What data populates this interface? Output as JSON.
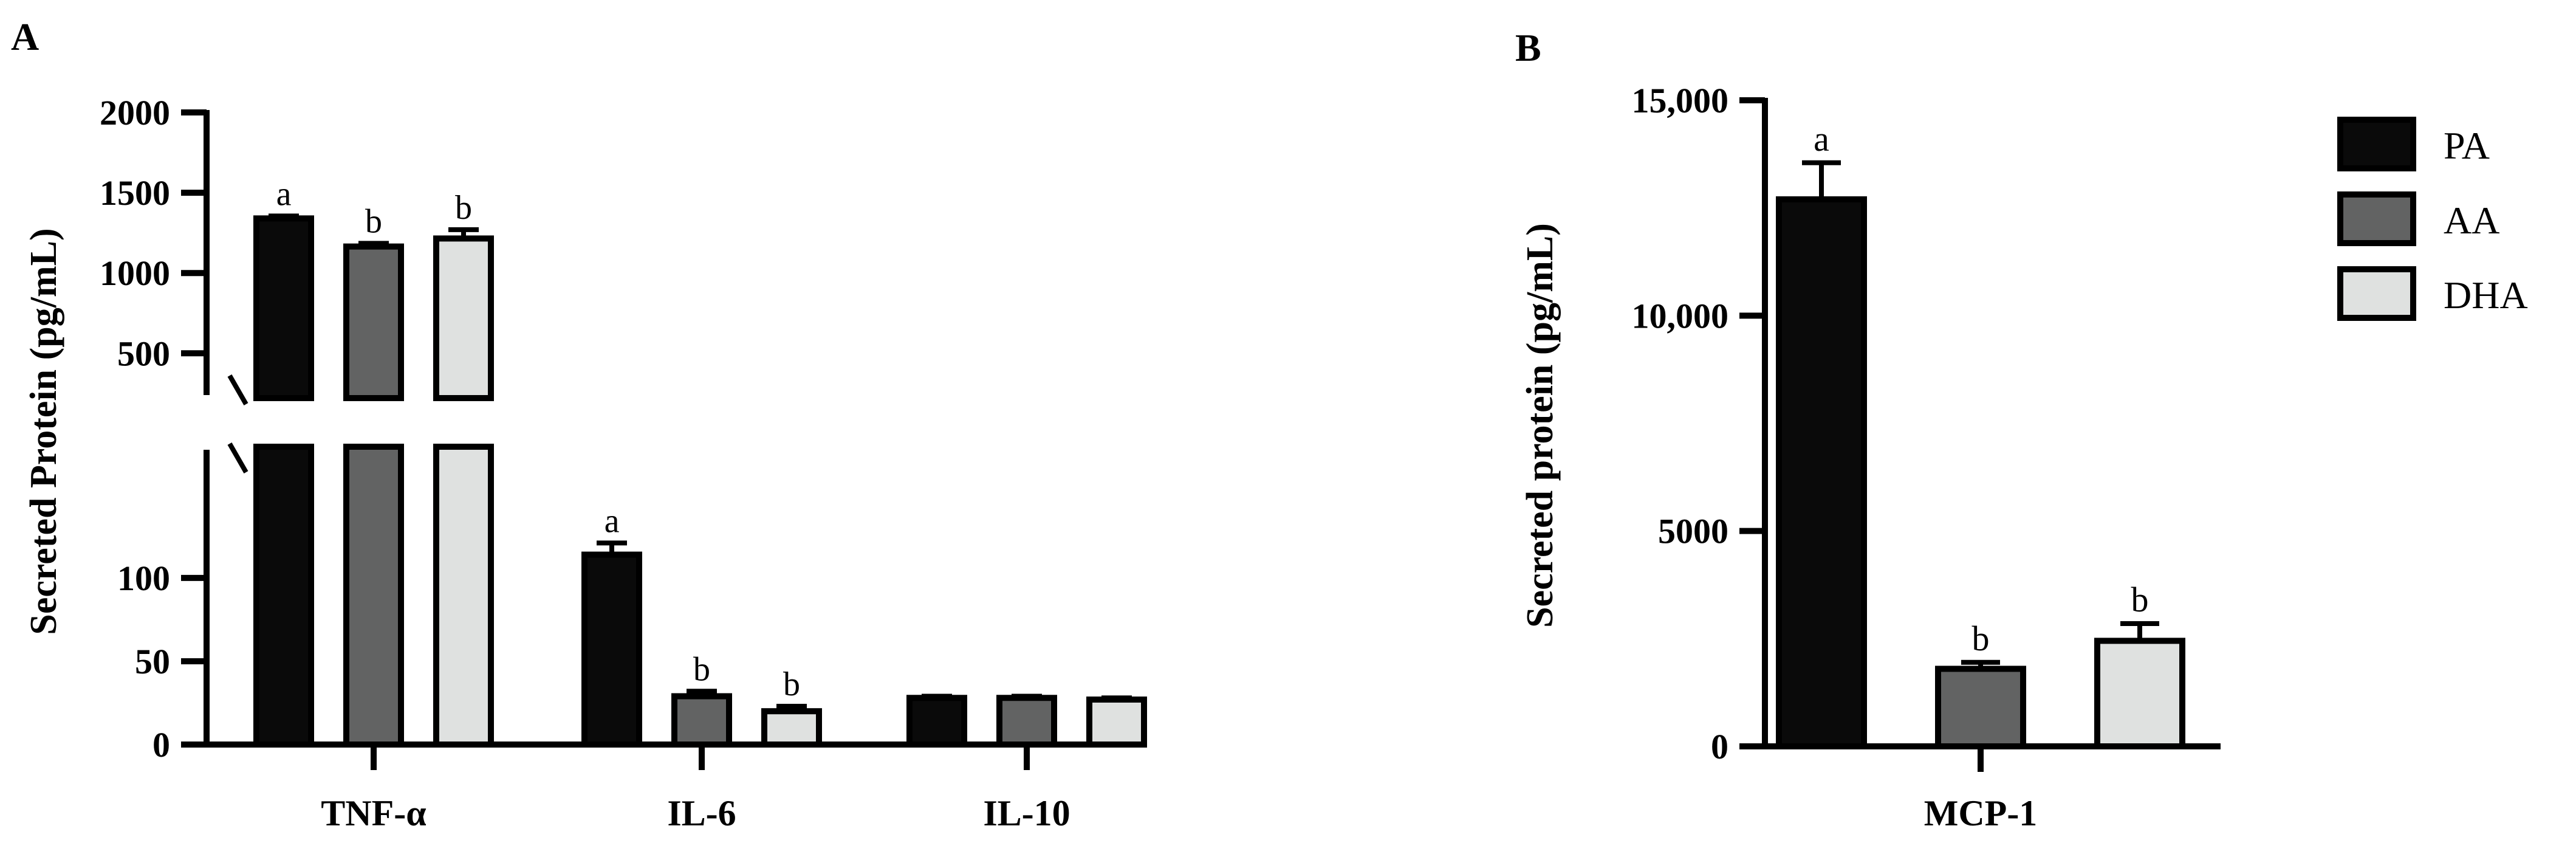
{
  "colors": {
    "PA": "#0a0a0a",
    "AA": "#626363",
    "DHA": "#dfe1e0",
    "axis": "#000000"
  },
  "legend": {
    "placement": "right",
    "items": [
      {
        "name": "PA",
        "color": "#0a0a0a"
      },
      {
        "name": "AA",
        "color": "#626363"
      },
      {
        "name": "DHA",
        "color": "#dfe1e0"
      }
    ]
  },
  "chart_data": [
    {
      "panel_label": "A",
      "type": "bar",
      "ylabel": "Secreted Protein (pg/mL)",
      "xlabel": "",
      "categories": [
        "TNF-α",
        "IL-6",
        "IL-10"
      ],
      "y_axis_break": true,
      "lower_segment": {
        "ylim": [
          0,
          135
        ],
        "ticks": [
          0,
          50,
          100
        ],
        "tick_labels": [
          "0",
          "50",
          "100"
        ]
      },
      "upper_segment": {
        "ylim": [
          240,
          2000
        ],
        "ticks": [
          500,
          1000,
          1500,
          2000
        ],
        "tick_labels": [
          "500",
          "1000",
          "1500",
          "2000"
        ]
      },
      "series": [
        {
          "name": "PA",
          "values": [
            1340,
            114,
            28
          ],
          "errors": [
            15,
            7,
            1
          ],
          "letters": [
            "a",
            "a",
            ""
          ]
        },
        {
          "name": "AA",
          "values": [
            1165,
            29,
            28
          ],
          "errors": [
            20,
            3,
            1
          ],
          "letters": [
            "b",
            "b",
            ""
          ]
        },
        {
          "name": "DHA",
          "values": [
            1215,
            20,
            27
          ],
          "errors": [
            55,
            3,
            1
          ],
          "letters": [
            "b",
            "b",
            ""
          ]
        }
      ]
    },
    {
      "panel_label": "B",
      "type": "bar",
      "ylabel": "Secreted protein (pg/mL)",
      "xlabel": "",
      "categories": [
        "MCP-1"
      ],
      "ylim": [
        0,
        15000
      ],
      "ticks": [
        0,
        5000,
        10000,
        15000
      ],
      "tick_labels": [
        "0",
        "5000",
        "10,000",
        "15,000"
      ],
      "series": [
        {
          "name": "PA",
          "values": [
            12700
          ],
          "errors": [
            850
          ],
          "letters": [
            "a"
          ]
        },
        {
          "name": "AA",
          "values": [
            1800
          ],
          "errors": [
            150
          ],
          "letters": [
            "b"
          ]
        },
        {
          "name": "DHA",
          "values": [
            2450
          ],
          "errors": [
            400
          ],
          "letters": [
            "b"
          ]
        }
      ]
    }
  ]
}
